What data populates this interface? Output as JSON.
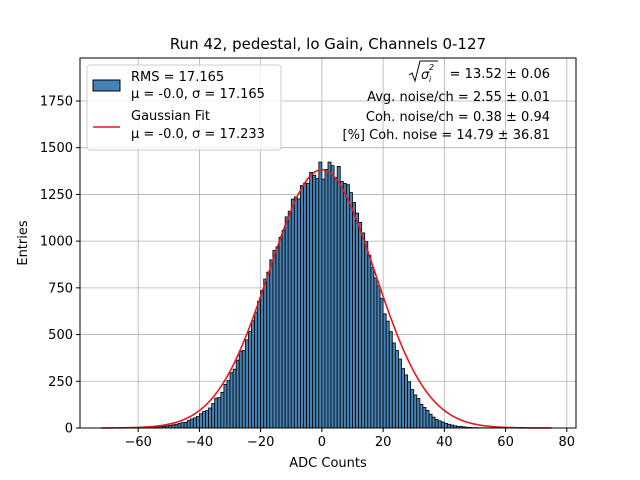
{
  "chart_data": {
    "type": "bar",
    "title": "Run 42, pedestal, lo Gain, Channels 0-127",
    "xlabel": "ADC Counts",
    "ylabel": "Entries",
    "xlim": [
      -79,
      83
    ],
    "ylim": [
      0,
      1980
    ],
    "x_ticks": [
      -60,
      -40,
      -20,
      0,
      20,
      40,
      60,
      80
    ],
    "y_ticks": [
      0,
      250,
      500,
      750,
      1000,
      1250,
      1500,
      1750
    ],
    "grid": true,
    "histogram": {
      "name": "RMS = 17.165",
      "stats_label": "μ = -0.0, σ = 17.165",
      "color": "#4682b4",
      "bin_start": -55,
      "bin_width": 1,
      "counts": [
        4,
        5,
        7,
        9,
        11,
        14,
        17,
        20,
        24,
        29,
        30,
        40,
        48,
        54,
        61,
        76,
        88,
        93,
        107,
        131,
        160,
        163,
        191,
        233,
        254,
        296,
        315,
        363,
        411,
        415,
        472,
        518,
        574,
        620,
        678,
        736,
        797,
        834,
        900,
        950,
        969,
        1020,
        1058,
        1130,
        1160,
        1225,
        1237,
        1226,
        1298,
        1310,
        1310,
        1368,
        1353,
        1335,
        1423,
        1332,
        1384,
        1423,
        1404,
        1340,
        1400,
        1320,
        1309,
        1302,
        1260,
        1207,
        1150,
        1100,
        1044,
        997,
        924,
        858,
        803,
        761,
        693,
        611,
        572,
        516,
        455,
        415,
        369,
        318,
        284,
        247,
        206,
        177,
        158,
        127,
        110,
        94,
        74,
        58,
        46,
        38,
        32,
        25,
        20,
        16,
        12,
        9,
        8,
        6,
        4,
        3,
        2,
        2,
        1,
        1,
        1,
        1
      ]
    },
    "fit": {
      "name": "Gaussian Fit",
      "stats_label": "μ = -0.0, σ = 17.233",
      "color": "#e31a1c",
      "mu": 0.0,
      "sigma": 17.233,
      "amplitude": 1382,
      "x_range": [
        -72,
        75
      ]
    },
    "legend_position": "upper left",
    "annotations": [
      "= 13.52 ± 0.06",
      "Avg. noise/ch = 2.55 ± 0.01",
      "Coh. noise/ch = 0.38 ± 0.94",
      "[%] Coh. noise = 14.79 ± 36.81"
    ]
  }
}
